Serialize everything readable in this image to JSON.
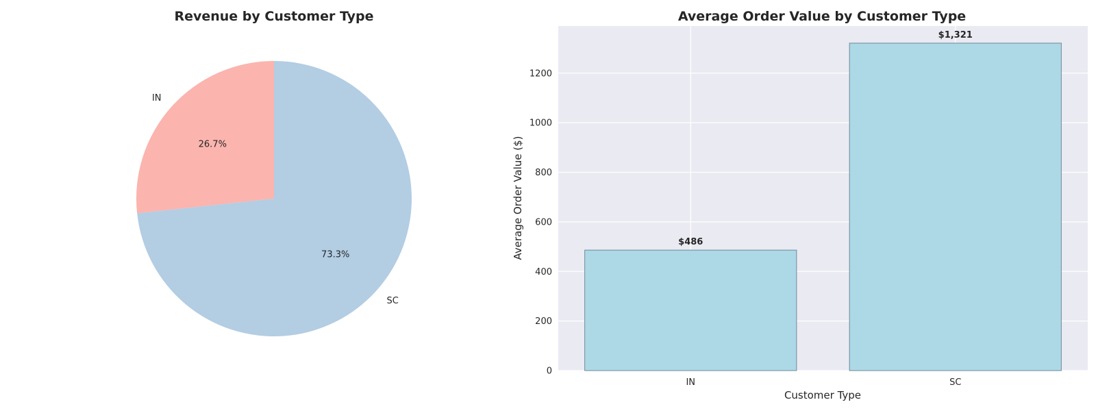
{
  "chart_data": [
    {
      "type": "pie",
      "title": "Revenue by Customer Type",
      "categories": [
        "IN",
        "SC"
      ],
      "values": [
        26.7,
        73.3
      ],
      "value_labels": [
        "26.7%",
        "73.3%"
      ],
      "colors": [
        "#fbb4ae",
        "#b3cde3"
      ],
      "start": "top",
      "direction": "counterclockwise"
    },
    {
      "type": "bar",
      "title": "Average Order Value by Customer Type",
      "xlabel": "Customer Type",
      "ylabel": "Average Order Value ($)",
      "categories": [
        "IN",
        "SC"
      ],
      "values": [
        486,
        1321
      ],
      "value_labels": [
        "$486",
        "$1,321"
      ],
      "ylim": [
        0,
        1390
      ],
      "yticks": [
        0,
        200,
        400,
        600,
        800,
        1000,
        1200
      ],
      "grid": true,
      "colors": {
        "bar": "#add8e6",
        "bar_edge": "#6e8a99",
        "plot_background": "#eaeaf2",
        "grid": "#ffffff"
      }
    }
  ]
}
